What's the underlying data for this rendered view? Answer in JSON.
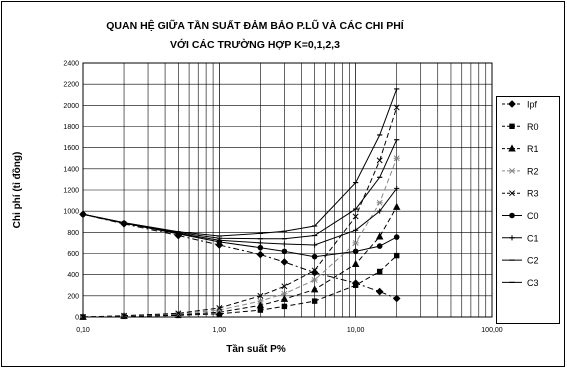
{
  "chart_data": {
    "type": "line",
    "title": "QUAN HỆ GIỮA TẦN SUẤT ĐẢM BẢO P.LŨ VÀ CÁC CHI PHÍ",
    "subtitle": "VỚI CÁC TRƯỜNG HỢP K=0,1,2,3",
    "xlabel": "Tần suất P%",
    "ylabel": "Chi phí (tỉ đồng)",
    "x_scale": "log",
    "xlim": [
      0.1,
      100
    ],
    "ylim": [
      0,
      2400
    ],
    "x_ticks": [
      0.1,
      1,
      10,
      100
    ],
    "x_tick_labels": [
      "0,10",
      "1,00",
      "10,00",
      "100,00"
    ],
    "y_ticks": [
      0,
      200,
      400,
      600,
      800,
      1000,
      1200,
      1400,
      1600,
      1800,
      2000,
      2200,
      2400
    ],
    "grid": true,
    "legend_position": "right",
    "x": [
      0.1,
      0.2,
      0.5,
      1,
      2,
      3,
      5,
      10,
      15,
      20
    ],
    "series": [
      {
        "name": "Ipf",
        "marker": "diamond",
        "dash": "6,3,2,3",
        "color": "#000000",
        "values": [
          970,
          880,
          770,
          680,
          590,
          520,
          420,
          320,
          240,
          175
        ]
      },
      {
        "name": "R0",
        "marker": "square",
        "dash": "5,3",
        "color": "#000000",
        "values": [
          0,
          6,
          15,
          30,
          65,
          100,
          150,
          300,
          430,
          580
        ]
      },
      {
        "name": "R1",
        "marker": "triangle",
        "dash": "5,3",
        "color": "#000000",
        "values": [
          0,
          8,
          20,
          45,
          110,
          170,
          260,
          500,
          760,
          1040
        ]
      },
      {
        "name": "R2",
        "marker": "cross",
        "dash": "5,3",
        "color": "#888888",
        "values": [
          0,
          10,
          28,
          65,
          150,
          220,
          350,
          700,
          1080,
          1500
        ]
      },
      {
        "name": "R3",
        "marker": "x",
        "dash": "5,3",
        "color": "#000000",
        "values": [
          0,
          12,
          35,
          85,
          200,
          290,
          440,
          950,
          1480,
          1980
        ]
      },
      {
        "name": "C0",
        "marker": "circle",
        "dash": "",
        "color": "#000000",
        "values": [
          970,
          886,
          785,
          710,
          655,
          620,
          570,
          620,
          670,
          755
        ]
      },
      {
        "name": "C1",
        "marker": "plus",
        "dash": "",
        "color": "#000000",
        "values": [
          970,
          888,
          790,
          725,
          700,
          690,
          680,
          820,
          1000,
          1215
        ]
      },
      {
        "name": "C2",
        "marker": "dash",
        "dash": "",
        "color": "#000000",
        "values": [
          970,
          890,
          798,
          745,
          740,
          740,
          770,
          1020,
          1320,
          1675
        ]
      },
      {
        "name": "C3",
        "marker": "dash",
        "dash": "",
        "color": "#000000",
        "values": [
          970,
          892,
          805,
          765,
          790,
          810,
          860,
          1270,
          1720,
          2155
        ]
      }
    ]
  }
}
